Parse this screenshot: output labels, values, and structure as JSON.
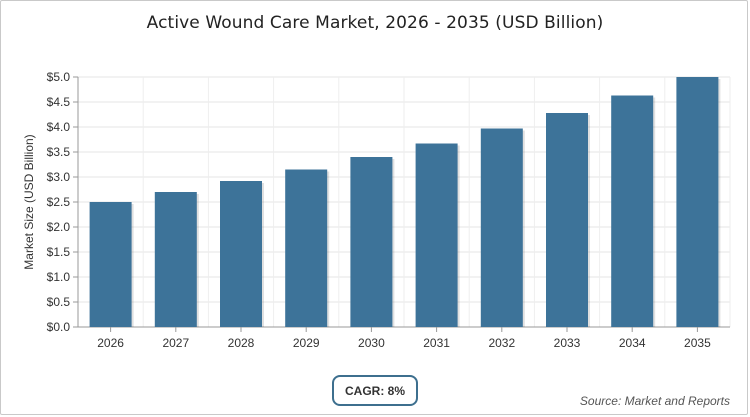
{
  "chart_data": {
    "type": "bar",
    "title": "Active Wound Care Market, 2026 - 2035 (USD Billion)",
    "xlabel": "",
    "ylabel": "Market Size (USD Billion)",
    "categories": [
      "2026",
      "2027",
      "2028",
      "2029",
      "2030",
      "2031",
      "2032",
      "2033",
      "2034",
      "2035"
    ],
    "values": [
      2.5,
      2.7,
      2.92,
      3.15,
      3.4,
      3.67,
      3.97,
      4.28,
      4.63,
      5.0
    ],
    "ylim": [
      0,
      5
    ],
    "yticks": [
      0,
      0.5,
      1,
      1.5,
      2,
      2.5,
      3,
      3.5,
      4,
      4.5,
      5
    ],
    "ytick_labels": [
      "$0.0",
      "$0.5",
      "$1.0",
      "$1.5",
      "$2.0",
      "$2.5",
      "$3.0",
      "$3.5",
      "$4.0",
      "$4.5",
      "$5.0"
    ],
    "grid": true,
    "bar_color": "#3d7399"
  },
  "badge": {
    "label": "CAGR: 8%"
  },
  "source": {
    "text": "Source: Market and Reports"
  }
}
